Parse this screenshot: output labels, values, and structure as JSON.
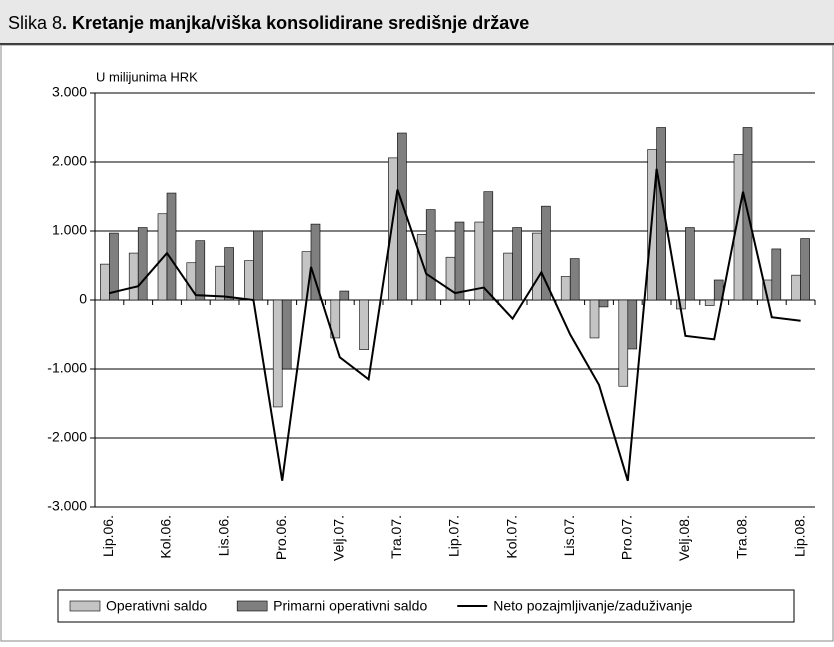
{
  "chart_data": {
    "type": "bar",
    "figure_label": "Slika 8",
    "title": ". Kretanje manjka/viška konsolidirane središnje države",
    "y_label": "U milijunima HRK",
    "categories": [
      "Lip.06.",
      null,
      "Kol.06.",
      null,
      "Lis.06.",
      null,
      "Pro.06.",
      null,
      "Velj.07.",
      null,
      "Tra.07.",
      null,
      "Lip.07.",
      null,
      "Kol.07.",
      null,
      "Lis.07.",
      null,
      "Pro.07.",
      null,
      "Velj.08.",
      null,
      "Tra.08.",
      null,
      "Lip.08."
    ],
    "series": [
      {
        "name": "Operativni saldo",
        "color": "#c4c4c4",
        "values": [
          520,
          680,
          1250,
          540,
          490,
          570,
          -1550,
          700,
          -550,
          -720,
          2060,
          950,
          620,
          1130,
          680,
          970,
          340,
          -550,
          -1250,
          2180,
          -130,
          -80,
          2110,
          290,
          360
        ]
      },
      {
        "name": "Primarni operativni saldo",
        "color": "#7f7f7f",
        "values": [
          970,
          1050,
          1550,
          860,
          760,
          1000,
          -1000,
          1100,
          130,
          0,
          2420,
          1310,
          1130,
          1570,
          1050,
          1360,
          600,
          -100,
          -710,
          2500,
          1050,
          290,
          2500,
          740,
          890
        ]
      },
      {
        "name": "Neto pozajmljivanje/zaduživanje",
        "color": "#000000",
        "type": "line",
        "values": [
          100,
          200,
          680,
          70,
          50,
          0,
          -2620,
          480,
          -830,
          -1150,
          1600,
          380,
          100,
          180,
          -270,
          400,
          -500,
          -1230,
          -2620,
          1900,
          -520,
          -570,
          1570,
          -250,
          -300
        ]
      }
    ],
    "ylim": [
      -3000,
      3000
    ],
    "yticks": [
      {
        "value": -3000,
        "label": "-3.000"
      },
      {
        "value": -2000,
        "label": "-2.000"
      },
      {
        "value": -1000,
        "label": "-1.000"
      },
      0,
      {
        "value": 1000,
        "label": "1.000"
      },
      {
        "value": 2000,
        "label": "2.000"
      },
      {
        "value": 3000,
        "label": "3.000"
      }
    ],
    "grid": true,
    "legend": "bottom"
  }
}
